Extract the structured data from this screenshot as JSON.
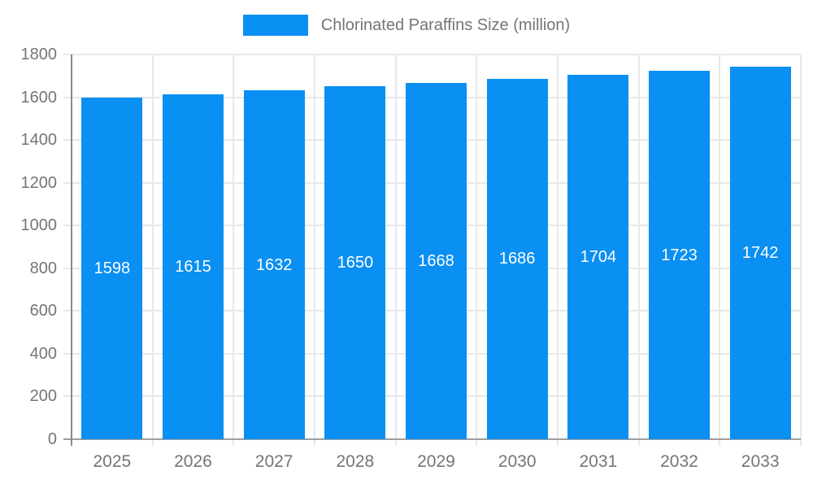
{
  "chart_data": {
    "type": "bar",
    "title": "Chlorinated Paraffins Size (million)",
    "legend_label": "Chlorinated Paraffins Size (million)",
    "legend_position": "top-center",
    "categories": [
      "2025",
      "2026",
      "2027",
      "2028",
      "2029",
      "2030",
      "2031",
      "2032",
      "2033"
    ],
    "values": [
      1598,
      1615,
      1632,
      1650,
      1668,
      1686,
      1704,
      1723,
      1742
    ],
    "xlabel": "",
    "ylabel": "",
    "ylim": [
      0,
      1800
    ],
    "ytick_step": 200,
    "ytick_labels": [
      "0",
      "200",
      "400",
      "600",
      "800",
      "1000",
      "1200",
      "1400",
      "1600",
      "1800"
    ],
    "grid": true,
    "bar_width_fraction": 0.75,
    "colors": {
      "bar": "#0a8ff2",
      "bar_label": "#ffffff",
      "axis_text": "#757575",
      "gridline": "#e8e8e8",
      "zero_line": "#9e9e9e",
      "y_axis_line": "#8a8a8a",
      "background": "#ffffff"
    }
  }
}
